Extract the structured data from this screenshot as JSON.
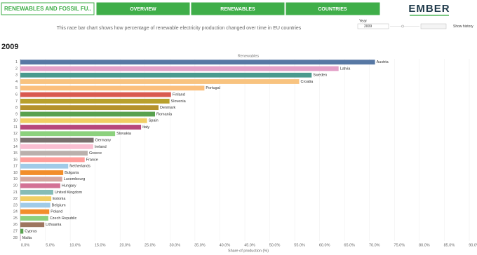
{
  "header": {
    "title": "RENEWABLES AND FOSSIL FU..",
    "tabs": [
      "OVERVIEW",
      "RENEWABLES",
      "COUNTRIES"
    ],
    "logo": "EMBER",
    "subtitle": "This race bar chart shows how percentage of renewable electricity production changed over time in EU countries"
  },
  "controls": {
    "year_label": "Year",
    "year_value": "2009",
    "show_history": "Show history"
  },
  "year_heading": "2009",
  "chart_data": {
    "type": "bar",
    "orientation": "horizontal",
    "title": "Renewables",
    "x_label": "Share of production (%)",
    "ranks": [
      1,
      2,
      3,
      4,
      5,
      6,
      7,
      8,
      9,
      10,
      11,
      12,
      13,
      14,
      15,
      16,
      17,
      18,
      19,
      20,
      21,
      22,
      23,
      24,
      25,
      26,
      27,
      28
    ],
    "categories": [
      "Austria",
      "Latvia",
      "Sweden",
      "Croatia",
      "Portugal",
      "Finland",
      "Slovenia",
      "Denmark",
      "Romania",
      "Spain",
      "Italy",
      "Slovakia",
      "Germany",
      "Ireland",
      "Greece",
      "France",
      "Netherlands",
      "Bulgaria",
      "Luxembourg",
      "Hungary",
      "United Kingdom",
      "Estonia",
      "Belgium",
      "Poland",
      "Czech Republic",
      "Lithuania",
      "Cyprus",
      "Malta"
    ],
    "values": [
      71.1,
      63.8,
      58.4,
      55.9,
      36.9,
      30.2,
      29.9,
      27.7,
      27.0,
      25.4,
      24.2,
      19.0,
      14.7,
      14.6,
      13.5,
      12.9,
      9.6,
      8.6,
      8.4,
      8.0,
      6.6,
      6.2,
      6.0,
      5.8,
      5.6,
      4.8,
      0.6,
      0.1
    ],
    "colors": [
      "#5778a4",
      "#e4a0c8",
      "#4a9a8e",
      "#f8c37f",
      "#fbbf7c",
      "#d95a50",
      "#b8a02c",
      "#b5922c",
      "#59a14f",
      "#f1ce63",
      "#b6487c",
      "#8cd17d",
      "#79706e",
      "#fabfd2",
      "#bab0ac",
      "#ff9d9a",
      "#a0cbe8",
      "#f28e2b",
      "#d4a6a0",
      "#d37295",
      "#86bcb6",
      "#f1ce63",
      "#a0cbe8",
      "#f28e2b",
      "#8cd17d",
      "#9d7660",
      "#59a14f",
      "#d4a6c8"
    ],
    "xlim": [
      0,
      90
    ],
    "xticks": [
      {
        "value": 0,
        "label": "0.0%"
      },
      {
        "value": 5,
        "label": "5.0%"
      },
      {
        "value": 10,
        "label": "10.0%"
      },
      {
        "value": 15,
        "label": "15.0%"
      },
      {
        "value": 20,
        "label": "20.0%"
      },
      {
        "value": 25,
        "label": "25.0%"
      },
      {
        "value": 30,
        "label": "30.0%"
      },
      {
        "value": 35,
        "label": "35.0%"
      },
      {
        "value": 40,
        "label": "40.0%"
      },
      {
        "value": 45,
        "label": "45.0%"
      },
      {
        "value": 50,
        "label": "50.0%"
      },
      {
        "value": 55,
        "label": "55.0%"
      },
      {
        "value": 60,
        "label": "60.0%"
      },
      {
        "value": 65,
        "label": "65.0%"
      },
      {
        "value": 70,
        "label": "70.0%"
      },
      {
        "value": 75,
        "label": "75.0%"
      },
      {
        "value": 80,
        "label": "80.0%"
      },
      {
        "value": 85,
        "label": "85.0%"
      },
      {
        "value": 90,
        "label": "90.0%"
      }
    ],
    "grid": true
  }
}
